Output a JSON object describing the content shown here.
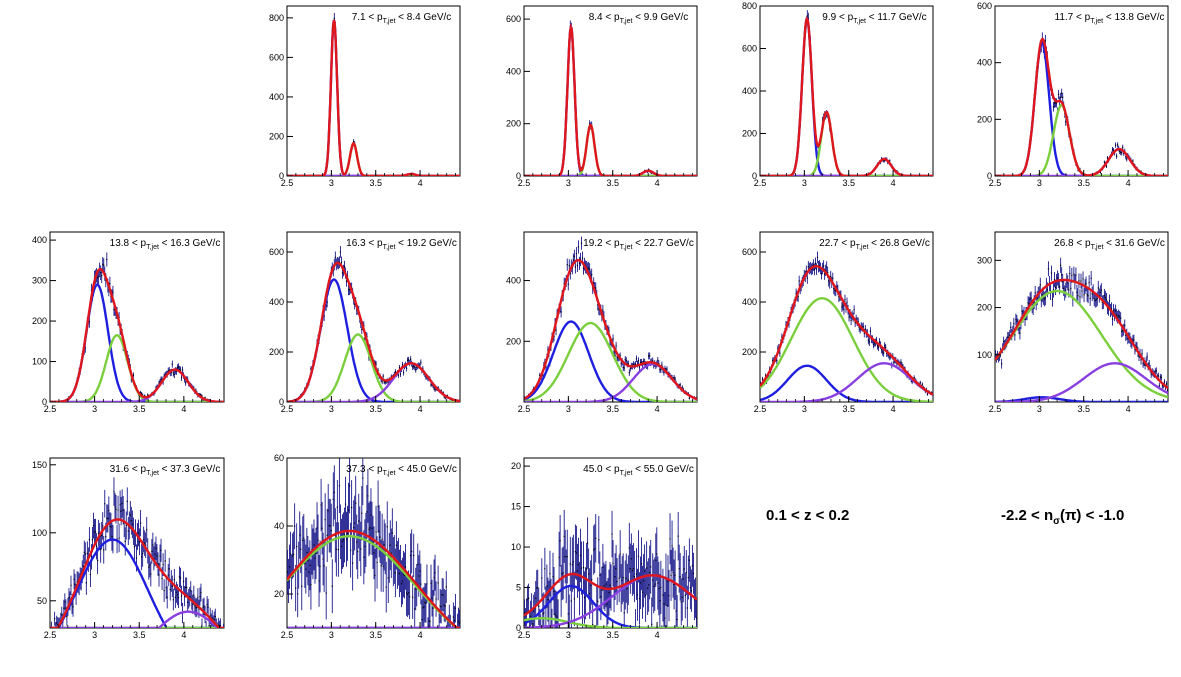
{
  "figure": {
    "x_range": [
      2.5,
      4.45
    ],
    "x_ticks": [
      "2.5",
      "3",
      "3.5",
      "4"
    ],
    "peak_positions": [
      3.03,
      3.25,
      3.9
    ],
    "colors": {
      "data": "#1a1a8c",
      "total_fit": "#e0161d",
      "pion": "#1f1fe0",
      "kaon": "#7bcf3d",
      "proton": "#8a3fe0"
    },
    "label_template": {
      "symbol": "p",
      "subscript": "T,jet",
      "unit": "GeV/c"
    }
  },
  "captions": {
    "z_range": "0.1 < z < 0.2",
    "nsigma_prefix": "-2.2 < n",
    "nsigma_sub": "σ",
    "nsigma_suffix": "(π) < -1.0"
  },
  "chart_data": [
    {
      "type": "line",
      "title": "7.1 < p_T,jet < 8.4 GeV/c",
      "pt_low": "7.1",
      "pt_high": "8.4",
      "ylim": [
        0,
        860
      ],
      "y_ticks": [
        0,
        200,
        400,
        600,
        800
      ],
      "series": [
        {
          "name": "",
          "component": "pion",
          "amplitude": 790,
          "center": 3.03,
          "sigma": 0.035
        },
        {
          "name": "",
          "component": "kaon",
          "amplitude": 165,
          "center": 3.25,
          "sigma": 0.04
        },
        {
          "name": "",
          "component": "proton",
          "amplitude": 10,
          "center": 3.9,
          "sigma": 0.05
        }
      ]
    },
    {
      "type": "line",
      "title": "8.4 < p_T,jet < 9.9 GeV/c",
      "pt_low": "8.4",
      "pt_high": "9.9",
      "ylim": [
        0,
        650
      ],
      "y_ticks": [
        0,
        200,
        400,
        600
      ],
      "series": [
        {
          "name": "",
          "component": "pion",
          "amplitude": 570,
          "center": 3.03,
          "sigma": 0.04
        },
        {
          "name": "",
          "component": "kaon",
          "amplitude": 195,
          "center": 3.25,
          "sigma": 0.045
        },
        {
          "name": "",
          "component": "proton",
          "amplitude": 20,
          "center": 3.9,
          "sigma": 0.06
        }
      ]
    },
    {
      "type": "line",
      "title": "9.9 < p_T,jet < 11.7 GeV/c",
      "pt_low": "9.9",
      "pt_high": "11.7",
      "ylim": [
        0,
        800
      ],
      "y_ticks": [
        0,
        200,
        400,
        600,
        800
      ],
      "series": [
        {
          "name": "",
          "component": "pion",
          "amplitude": 740,
          "center": 3.03,
          "sigma": 0.055
        },
        {
          "name": "",
          "component": "kaon",
          "amplitude": 300,
          "center": 3.25,
          "sigma": 0.06
        },
        {
          "name": "",
          "component": "proton",
          "amplitude": 80,
          "center": 3.9,
          "sigma": 0.08
        }
      ]
    },
    {
      "type": "line",
      "title": "11.7 < p_T,jet < 13.8 GeV/c",
      "pt_low": "11.7",
      "pt_high": "13.8",
      "ylim": [
        0,
        600
      ],
      "y_ticks": [
        0,
        200,
        400,
        600
      ],
      "series": [
        {
          "name": "",
          "component": "pion",
          "amplitude": 470,
          "center": 3.03,
          "sigma": 0.08
        },
        {
          "name": "",
          "component": "kaon",
          "amplitude": 250,
          "center": 3.25,
          "sigma": 0.09
        },
        {
          "name": "",
          "component": "proton",
          "amplitude": 95,
          "center": 3.9,
          "sigma": 0.12
        }
      ]
    },
    {
      "type": "line",
      "title": "13.8 < p_T,jet < 16.3 GeV/c",
      "pt_low": "13.8",
      "pt_high": "16.3",
      "ylim": [
        0,
        420
      ],
      "y_ticks": [
        0,
        100,
        200,
        300,
        400
      ],
      "series": [
        {
          "name": "",
          "component": "pion",
          "amplitude": 290,
          "center": 3.03,
          "sigma": 0.12
        },
        {
          "name": "",
          "component": "kaon",
          "amplitude": 165,
          "center": 3.25,
          "sigma": 0.12
        },
        {
          "name": "",
          "component": "proton",
          "amplitude": 80,
          "center": 3.9,
          "sigma": 0.15
        }
      ]
    },
    {
      "type": "line",
      "title": "16.3 < p_T,jet < 19.2 GeV/c",
      "pt_low": "16.3",
      "pt_high": "19.2",
      "ylim": [
        0,
        680
      ],
      "y_ticks": [
        0,
        200,
        400,
        600
      ],
      "series": [
        {
          "name": "",
          "component": "pion",
          "amplitude": 490,
          "center": 3.03,
          "sigma": 0.15
        },
        {
          "name": "",
          "component": "kaon",
          "amplitude": 270,
          "center": 3.3,
          "sigma": 0.15
        },
        {
          "name": "",
          "component": "proton",
          "amplitude": 155,
          "center": 3.9,
          "sigma": 0.2
        }
      ]
    },
    {
      "type": "line",
      "title": "19.2 < p_T,jet < 22.7 GeV/c",
      "pt_low": "19.2",
      "pt_high": "22.7",
      "ylim": [
        0,
        560
      ],
      "y_ticks": [
        200,
        400
      ],
      "series": [
        {
          "name": "",
          "component": "pion",
          "amplitude": 265,
          "center": 3.03,
          "sigma": 0.2
        },
        {
          "name": "",
          "component": "kaon",
          "amplitude": 260,
          "center": 3.25,
          "sigma": 0.25
        },
        {
          "name": "",
          "component": "proton",
          "amplitude": 125,
          "center": 3.95,
          "sigma": 0.22
        }
      ]
    },
    {
      "type": "line",
      "title": "22.7 < p_T,jet < 26.8 GeV/c",
      "pt_low": "22.7",
      "pt_high": "26.8",
      "ylim": [
        0,
        680
      ],
      "y_ticks": [
        200,
        400,
        600
      ],
      "series": [
        {
          "name": "",
          "component": "pion",
          "amplitude": 145,
          "center": 3.03,
          "sigma": 0.22
        },
        {
          "name": "",
          "component": "kaon",
          "amplitude": 415,
          "center": 3.2,
          "sigma": 0.35
        },
        {
          "name": "",
          "component": "proton",
          "amplitude": 155,
          "center": 3.9,
          "sigma": 0.3
        }
      ]
    },
    {
      "type": "line",
      "title": "26.8 < p_T,jet < 31.6 GeV/c",
      "pt_low": "26.8",
      "pt_high": "31.6",
      "ylim": [
        0,
        360
      ],
      "y_ticks": [
        100,
        200,
        300
      ],
      "series": [
        {
          "name": "",
          "component": "pion",
          "amplitude": 10,
          "center": 3.03,
          "sigma": 0.2
        },
        {
          "name": "",
          "component": "kaon",
          "amplitude": 235,
          "center": 3.2,
          "sigma": 0.5
        },
        {
          "name": "",
          "component": "proton",
          "amplitude": 82,
          "center": 3.85,
          "sigma": 0.35
        }
      ]
    },
    {
      "type": "line",
      "title": "31.6 < p_T,jet < 37.3 GeV/c",
      "pt_low": "31.6",
      "pt_high": "37.3",
      "ylim": [
        30,
        155
      ],
      "y_ticks": [
        50,
        100,
        150
      ],
      "series": [
        {
          "name": "",
          "component": "pion",
          "amplitude": 95,
          "center": 3.2,
          "sigma": 0.4
        },
        {
          "name": "",
          "component": "kaon",
          "amplitude": 10,
          "center": 3.3,
          "sigma": 0.3
        },
        {
          "name": "",
          "component": "proton",
          "amplitude": 42,
          "center": 4.05,
          "sigma": 0.4
        }
      ]
    },
    {
      "type": "line",
      "title": "37.3 < p_T,jet < 45.0 GeV/c",
      "pt_low": "37.3",
      "pt_high": "45.0",
      "ylim": [
        10,
        60
      ],
      "y_ticks": [
        20,
        40,
        60
      ],
      "series": [
        {
          "name": "",
          "component": "pion",
          "amplitude": 1.5,
          "center": 3.2,
          "sigma": 0.4
        },
        {
          "name": "",
          "component": "kaon",
          "amplitude": 37,
          "center": 3.2,
          "sigma": 0.75
        },
        {
          "name": "",
          "component": "proton",
          "amplitude": 0.5,
          "center": 3.9,
          "sigma": 0.3
        }
      ]
    },
    {
      "type": "line",
      "title": "45.0 < p_T,jet < 55.0 GeV/c",
      "pt_low": "45.0",
      "pt_high": "55.0",
      "ylim": [
        0,
        21
      ],
      "y_ticks": [
        0,
        5,
        10,
        15,
        20
      ],
      "series": [
        {
          "name": "",
          "component": "pion",
          "amplitude": 5.2,
          "center": 3.03,
          "sigma": 0.25
        },
        {
          "name": "",
          "component": "kaon",
          "amplitude": 1.2,
          "center": 2.7,
          "sigma": 0.3
        },
        {
          "name": "",
          "component": "proton",
          "amplitude": 6.5,
          "center": 3.95,
          "sigma": 0.45
        }
      ]
    }
  ]
}
